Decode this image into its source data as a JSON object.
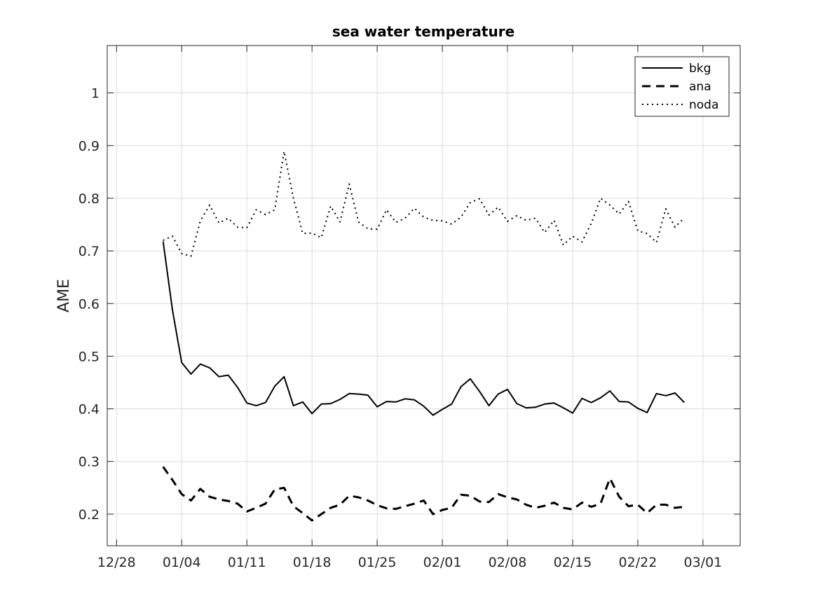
{
  "chart_data": {
    "type": "line",
    "title": "sea water temperature",
    "xlabel": "",
    "ylabel": "AME",
    "xlim": [
      "2020-12-27",
      "2021-03-05"
    ],
    "ylim": [
      0.14,
      1.09
    ],
    "xticks": [
      "2020-12-28",
      "2021-01-04",
      "2021-01-11",
      "2021-01-18",
      "2021-01-25",
      "2021-02-01",
      "2021-02-08",
      "2021-02-15",
      "2021-02-22",
      "2021-03-01"
    ],
    "xtick_labels": [
      "12/28",
      "01/04",
      "01/11",
      "01/18",
      "01/25",
      "02/01",
      "02/08",
      "02/15",
      "02/22",
      "03/01"
    ],
    "yticks": [
      0.2,
      0.3,
      0.4,
      0.5,
      0.6,
      0.7,
      0.8,
      0.9,
      1
    ],
    "ytick_labels": [
      "0.2",
      "0.3",
      "0.4",
      "0.5",
      "0.6",
      "0.7",
      "0.8",
      "0.9",
      "1"
    ],
    "grid": true,
    "legend_position": "top-right",
    "x": [
      "2021-01-02",
      "2021-01-03",
      "2021-01-04",
      "2021-01-05",
      "2021-01-06",
      "2021-01-07",
      "2021-01-08",
      "2021-01-09",
      "2021-01-10",
      "2021-01-11",
      "2021-01-12",
      "2021-01-13",
      "2021-01-14",
      "2021-01-15",
      "2021-01-16",
      "2021-01-17",
      "2021-01-18",
      "2021-01-19",
      "2021-01-20",
      "2021-01-21",
      "2021-01-22",
      "2021-01-23",
      "2021-01-24",
      "2021-01-25",
      "2021-01-26",
      "2021-01-27",
      "2021-01-28",
      "2021-01-29",
      "2021-01-30",
      "2021-01-31",
      "2021-02-01",
      "2021-02-02",
      "2021-02-03",
      "2021-02-04",
      "2021-02-05",
      "2021-02-06",
      "2021-02-07",
      "2021-02-08",
      "2021-02-09",
      "2021-02-10",
      "2021-02-11",
      "2021-02-12",
      "2021-02-13",
      "2021-02-14",
      "2021-02-15",
      "2021-02-16",
      "2021-02-17",
      "2021-02-18",
      "2021-02-19",
      "2021-02-20",
      "2021-02-21",
      "2021-02-22",
      "2021-02-23",
      "2021-02-24",
      "2021-02-25",
      "2021-02-26",
      "2021-02-27"
    ],
    "series": [
      {
        "name": "bkg",
        "style": "solid",
        "color": "#000000",
        "values": [
          0.718,
          0.588,
          0.488,
          0.466,
          0.485,
          0.478,
          0.461,
          0.464,
          0.441,
          0.411,
          0.406,
          0.412,
          0.443,
          0.461,
          0.406,
          0.413,
          0.391,
          0.409,
          0.41,
          0.418,
          0.429,
          0.428,
          0.426,
          0.404,
          0.414,
          0.413,
          0.419,
          0.417,
          0.405,
          0.388,
          0.399,
          0.409,
          0.442,
          0.457,
          0.433,
          0.406,
          0.428,
          0.437,
          0.41,
          0.402,
          0.403,
          0.409,
          0.411,
          0.402,
          0.392,
          0.42,
          0.412,
          0.421,
          0.434,
          0.414,
          0.413,
          0.401,
          0.393,
          0.429,
          0.425,
          0.43,
          0.412
        ]
      },
      {
        "name": "ana",
        "style": "dashed",
        "color": "#000000",
        "values": [
          0.29,
          0.265,
          0.238,
          0.226,
          0.248,
          0.233,
          0.228,
          0.225,
          0.22,
          0.205,
          0.212,
          0.22,
          0.247,
          0.25,
          0.215,
          0.202,
          0.188,
          0.2,
          0.212,
          0.218,
          0.235,
          0.232,
          0.226,
          0.217,
          0.211,
          0.21,
          0.215,
          0.22,
          0.226,
          0.2,
          0.208,
          0.212,
          0.237,
          0.235,
          0.224,
          0.223,
          0.238,
          0.232,
          0.228,
          0.218,
          0.212,
          0.216,
          0.222,
          0.212,
          0.209,
          0.222,
          0.214,
          0.22,
          0.268,
          0.233,
          0.215,
          0.218,
          0.202,
          0.218,
          0.218,
          0.212,
          0.214
        ]
      },
      {
        "name": "noda",
        "style": "dotted",
        "color": "#000000",
        "values": [
          0.72,
          0.728,
          0.695,
          0.69,
          0.757,
          0.787,
          0.753,
          0.762,
          0.745,
          0.744,
          0.778,
          0.769,
          0.778,
          0.889,
          0.8,
          0.733,
          0.734,
          0.725,
          0.785,
          0.755,
          0.827,
          0.755,
          0.742,
          0.741,
          0.778,
          0.754,
          0.762,
          0.781,
          0.764,
          0.758,
          0.757,
          0.751,
          0.764,
          0.792,
          0.799,
          0.768,
          0.783,
          0.756,
          0.767,
          0.758,
          0.762,
          0.735,
          0.758,
          0.711,
          0.728,
          0.717,
          0.752,
          0.8,
          0.787,
          0.77,
          0.794,
          0.738,
          0.733,
          0.716,
          0.78,
          0.745,
          0.763
        ]
      }
    ]
  }
}
